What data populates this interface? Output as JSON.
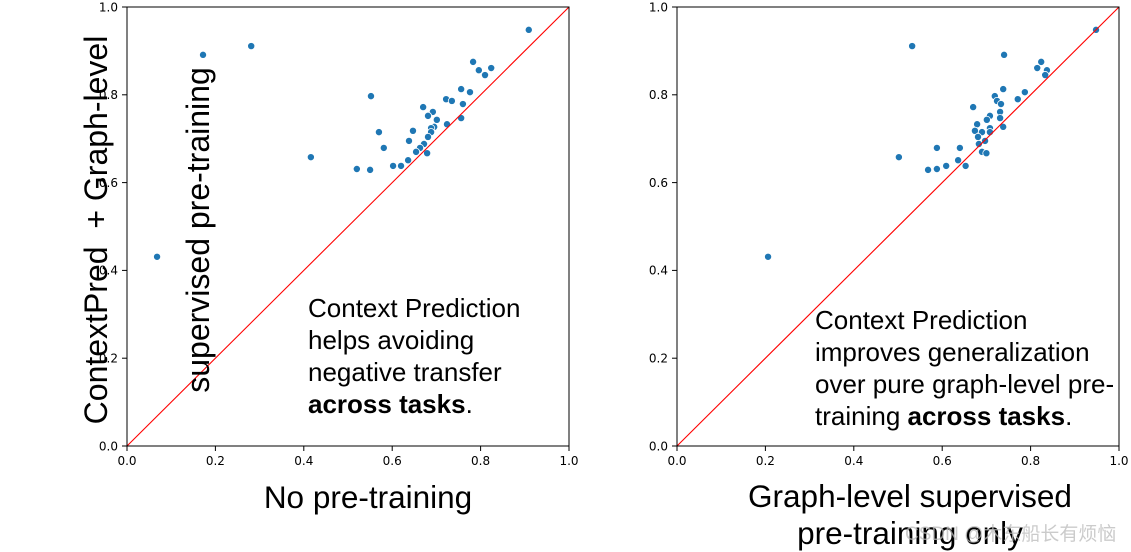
{
  "chart_data": [
    {
      "type": "scatter",
      "xlabel": [
        "No pre-training"
      ],
      "ylabel": [
        "ContextPred  + Graph-level",
        "supervised pre-training"
      ],
      "xlim": [
        0,
        1
      ],
      "ylim": [
        0,
        1
      ],
      "xticks": [
        "0.0",
        "0.2",
        "0.4",
        "0.6",
        "0.8",
        "1.0"
      ],
      "yticks": [
        "0.0",
        "0.2",
        "0.4",
        "0.6",
        "0.8",
        "1.0"
      ],
      "grid": false,
      "diagonal_line": true,
      "annotation": {
        "lines": [
          "Context Prediction",
          "helps avoiding",
          "negative transfer"
        ],
        "emphasis": "across tasks",
        "suffix": "."
      },
      "series": [
        {
          "x": [
            0.909,
            0.281,
            0.172,
            0.783,
            0.824,
            0.796,
            0.81,
            0.756,
            0.776,
            0.552,
            0.722,
            0.735,
            0.76,
            0.67,
            0.692,
            0.681,
            0.756,
            0.701,
            0.724,
            0.695,
            0.688,
            0.647,
            0.57,
            0.688,
            0.681,
            0.638,
            0.672,
            0.663,
            0.581,
            0.654,
            0.679,
            0.416,
            0.636,
            0.602,
            0.62,
            0.52,
            0.55,
            0.068
          ],
          "y": [
            0.948,
            0.911,
            0.891,
            0.875,
            0.861,
            0.856,
            0.845,
            0.813,
            0.806,
            0.797,
            0.79,
            0.786,
            0.779,
            0.772,
            0.761,
            0.752,
            0.747,
            0.743,
            0.733,
            0.727,
            0.724,
            0.718,
            0.715,
            0.715,
            0.704,
            0.695,
            0.688,
            0.679,
            0.679,
            0.67,
            0.667,
            0.658,
            0.651,
            0.638,
            0.638,
            0.631,
            0.629,
            0.431
          ]
        }
      ]
    },
    {
      "type": "scatter",
      "xlabel": [
        "Graph-level supervised",
        "pre-training only"
      ],
      "xlim": [
        0,
        1
      ],
      "ylim": [
        0,
        1
      ],
      "xticks": [
        "0.0",
        "0.2",
        "0.4",
        "0.6",
        "0.8",
        "1.0"
      ],
      "yticks": [
        "0.0",
        "0.2",
        "0.4",
        "0.6",
        "0.8",
        "1.0"
      ],
      "grid": false,
      "diagonal_line": true,
      "annotation": {
        "lines": [
          "Context Prediction",
          "improves generalization",
          "over pure graph-level pre-"
        ],
        "prefix": "training ",
        "emphasis": "across tasks",
        "suffix": "."
      },
      "series": [
        {
          "x": [
            0.948,
            0.532,
            0.74,
            0.824,
            0.815,
            0.837,
            0.833,
            0.738,
            0.787,
            0.719,
            0.771,
            0.724,
            0.733,
            0.67,
            0.731,
            0.708,
            0.731,
            0.701,
            0.679,
            0.738,
            0.708,
            0.674,
            0.69,
            0.708,
            0.681,
            0.697,
            0.683,
            0.64,
            0.588,
            0.69,
            0.7,
            0.502,
            0.636,
            0.609,
            0.653,
            0.588,
            0.568,
            0.206
          ],
          "y": [
            0.948,
            0.911,
            0.891,
            0.875,
            0.861,
            0.856,
            0.845,
            0.813,
            0.806,
            0.797,
            0.79,
            0.786,
            0.779,
            0.772,
            0.761,
            0.752,
            0.747,
            0.743,
            0.733,
            0.727,
            0.724,
            0.718,
            0.715,
            0.715,
            0.704,
            0.695,
            0.688,
            0.679,
            0.679,
            0.67,
            0.667,
            0.658,
            0.651,
            0.638,
            0.638,
            0.631,
            0.629,
            0.431
          ]
        }
      ]
    }
  ],
  "colors": {
    "points": "#1f77b4",
    "point_edge": "#ffffff",
    "diagonal": "#ff0000",
    "axes": "#000000"
  },
  "watermark": "CSDN @木东船长有烦恼"
}
